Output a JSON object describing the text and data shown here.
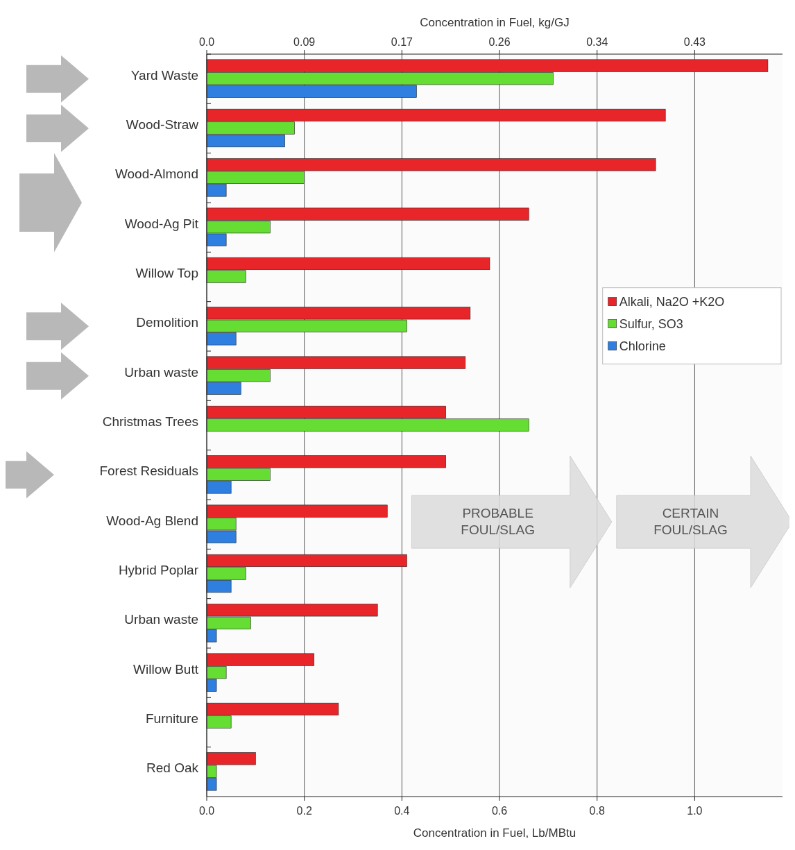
{
  "chart_data": {
    "type": "bar",
    "orientation": "horizontal",
    "xlabel": "Concentration in Fuel, Lb/MBtu",
    "x2label": "Concentration in Fuel, kg/GJ",
    "categories": [
      "Yard Waste",
      "Wood-Straw",
      "Wood-Almond",
      "Wood-Ag Pit",
      "Willow Top",
      "Demolition",
      "Urban waste",
      "Christmas Trees",
      "Forest Residuals",
      "Wood-Ag Blend",
      "Hybrid Poplar",
      "Urban waste",
      "Willow Butt",
      "Furniture",
      "Red Oak"
    ],
    "series": [
      {
        "name": "Alkali, Na2O +K2O",
        "color": "#e8262a",
        "values": [
          1.15,
          0.94,
          0.92,
          0.66,
          0.58,
          0.54,
          0.53,
          0.49,
          0.49,
          0.37,
          0.41,
          0.35,
          0.22,
          0.27,
          0.1
        ]
      },
      {
        "name": "Sulfur, SO3",
        "color": "#66dd33",
        "values": [
          0.71,
          0.18,
          0.2,
          0.13,
          0.08,
          0.41,
          0.13,
          0.66,
          0.13,
          0.06,
          0.08,
          0.09,
          0.04,
          0.05,
          0.02
        ]
      },
      {
        "name": "Chlorine",
        "color": "#2e7fe0",
        "values": [
          0.43,
          0.16,
          0.04,
          0.04,
          null,
          0.06,
          0.07,
          null,
          0.05,
          0.06,
          0.05,
          0.02,
          0.02,
          null,
          0.02
        ]
      }
    ],
    "xlim": [
      0,
      1.18
    ],
    "xticks": [
      {
        "value": 0,
        "label": "0.0"
      },
      0.2,
      0.4,
      0.6,
      0.8,
      {
        "value": 1,
        "label": "1.0"
      }
    ],
    "x2lim": [
      0,
      0.5074
    ],
    "x2ticks": [
      {
        "value": 0,
        "label": "0.0"
      },
      {
        "value": 0.086,
        "label": "0.09"
      },
      {
        "value": 0.172,
        "label": "0.17"
      },
      {
        "value": 0.258,
        "label": "0.26"
      },
      {
        "value": 0.344,
        "label": "0.34"
      },
      {
        "value": 0.43,
        "label": "0.43"
      }
    ],
    "grid": "x",
    "legend": "right",
    "annotations": [
      "PROBABLE\nFOUL/SLAG",
      "CERTAIN\nFOUL/SLAG"
    ]
  }
}
